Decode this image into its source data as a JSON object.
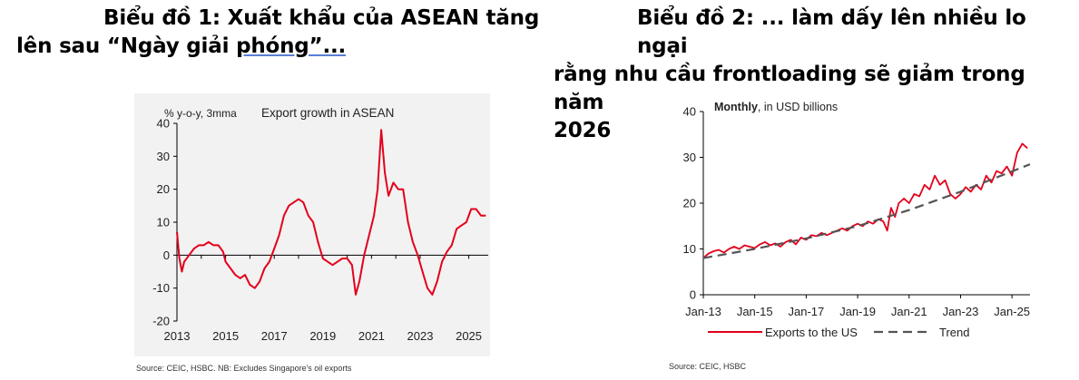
{
  "heading1": {
    "line1": "Biểu đồ 1: Xuất khẩu của ASEAN tăng",
    "line2_prefix": "lên sau “Ngày giải ",
    "line2_underlined": "phóng”...",
    "line2_suffix": ""
  },
  "heading2": {
    "line1": "Biểu đồ 2: ... làm dấy lên nhiều lo ngại",
    "line2": "rằng nhu cầu frontloading sẽ giảm trong năm",
    "line3": "2026"
  },
  "chart1": {
    "type": "line",
    "unit_label": "% y-o-y, 3mma",
    "title": "Export growth in ASEAN",
    "ylim": [
      -20,
      40
    ],
    "yticks": [
      "40",
      "30",
      "20",
      "10",
      "0",
      "-10",
      "-20"
    ],
    "xlim": [
      2013,
      2025.8
    ],
    "xticks": [
      "2013",
      "2015",
      "2017",
      "2019",
      "2021",
      "2023",
      "2025"
    ],
    "source": "Source: CEIC, HSBC. NB: Excludes Singapore's oil exports",
    "colors": {
      "line": "#e3001b",
      "background": "#f2f2f2"
    },
    "series": [
      {
        "x": [
          2013.0,
          2013.1,
          2013.2,
          2013.3,
          2013.5,
          2013.7,
          2013.9,
          2014.1,
          2014.3,
          2014.5,
          2014.7,
          2014.9,
          2015.0,
          2015.2,
          2015.4,
          2015.6,
          2015.8,
          2016.0,
          2016.2,
          2016.4,
          2016.6,
          2016.8,
          2017.0,
          2017.2,
          2017.4,
          2017.6,
          2017.8,
          2018.0,
          2018.2,
          2018.4,
          2018.6,
          2018.8,
          2019.0,
          2019.2,
          2019.4,
          2019.6,
          2019.8,
          2020.0,
          2020.2,
          2020.35,
          2020.5,
          2020.7,
          2020.9,
          2021.1,
          2021.25,
          2021.4,
          2021.55,
          2021.7,
          2021.9,
          2022.1,
          2022.3,
          2022.5,
          2022.7,
          2022.9,
          2023.1,
          2023.3,
          2023.5,
          2023.7,
          2023.9,
          2024.1,
          2024.3,
          2024.5,
          2024.7,
          2024.9,
          2025.1,
          2025.3,
          2025.5,
          2025.7
        ],
        "y": [
          7,
          -1,
          -5,
          -2,
          0,
          2,
          3,
          3,
          4,
          3,
          3,
          1,
          -2,
          -4,
          -6,
          -7,
          -6,
          -9,
          -10,
          -8,
          -4,
          -2,
          2,
          6,
          12,
          15,
          16,
          17,
          16,
          12,
          10,
          4,
          -1,
          -2,
          -3,
          -2,
          -1,
          -1,
          -3,
          -12,
          -8,
          0,
          6,
          12,
          20,
          38,
          25,
          18,
          22,
          20,
          20,
          10,
          4,
          0,
          -5,
          -10,
          -12,
          -8,
          -2,
          1,
          3,
          8,
          9,
          10,
          14,
          14,
          12,
          12
        ]
      }
    ]
  },
  "chart2": {
    "type": "line",
    "title": "Monthly",
    "title_suffix": ", in USD billions",
    "ylim": [
      0,
      40
    ],
    "yticks": [
      "40",
      "30",
      "20",
      "10",
      "0"
    ],
    "xlim": [
      2013,
      2025.7
    ],
    "xticks": [
      "Jan-13",
      "Jan-15",
      "Jan-17",
      "Jan-19",
      "Jan-21",
      "Jan-23",
      "Jan-25"
    ],
    "legend": [
      "Exports to the US",
      "Trend"
    ],
    "source": "Source: CEIC, HSBC",
    "colors": {
      "exports": "#e3001b",
      "trend": "#555555"
    },
    "series": [
      {
        "name": "Exports to the US",
        "x": [
          2013.0,
          2013.2,
          2013.4,
          2013.6,
          2013.8,
          2014.0,
          2014.2,
          2014.4,
          2014.6,
          2014.8,
          2015.0,
          2015.2,
          2015.4,
          2015.6,
          2015.8,
          2016.0,
          2016.2,
          2016.4,
          2016.6,
          2016.8,
          2017.0,
          2017.2,
          2017.4,
          2017.6,
          2017.8,
          2018.0,
          2018.2,
          2018.4,
          2018.6,
          2018.8,
          2019.0,
          2019.2,
          2019.4,
          2019.6,
          2019.8,
          2020.0,
          2020.15,
          2020.3,
          2020.45,
          2020.6,
          2020.8,
          2021.0,
          2021.2,
          2021.4,
          2021.6,
          2021.8,
          2022.0,
          2022.2,
          2022.4,
          2022.6,
          2022.8,
          2023.0,
          2023.2,
          2023.4,
          2023.6,
          2023.8,
          2024.0,
          2024.2,
          2024.4,
          2024.6,
          2024.8,
          2025.0,
          2025.2,
          2025.4,
          2025.6
        ],
        "y": [
          8.0,
          9.0,
          9.5,
          9.8,
          9.2,
          10.0,
          10.5,
          10.0,
          10.8,
          10.5,
          10.2,
          11.0,
          11.5,
          10.8,
          11.2,
          10.5,
          11.5,
          12.0,
          11.0,
          12.5,
          12.0,
          13.0,
          12.8,
          13.5,
          13.0,
          13.5,
          14.0,
          14.5,
          14.0,
          15.0,
          15.5,
          15.0,
          16.0,
          15.5,
          16.5,
          16.0,
          14.0,
          19.0,
          17.0,
          20.0,
          21.0,
          20.0,
          22.0,
          21.5,
          24.0,
          23.0,
          26.0,
          24.0,
          25.0,
          22.0,
          21.0,
          22.0,
          23.5,
          22.5,
          24.0,
          23.0,
          26.0,
          24.5,
          27.0,
          26.5,
          28.0,
          26.0,
          31.0,
          33.0,
          32.0
        ]
      },
      {
        "name": "Trend",
        "x": [
          2013.0,
          2015.0,
          2017.0,
          2019.0,
          2021.0,
          2023.0,
          2025.7
        ],
        "y": [
          8.0,
          10.0,
          12.3,
          15.0,
          18.5,
          22.5,
          28.5
        ]
      }
    ]
  }
}
